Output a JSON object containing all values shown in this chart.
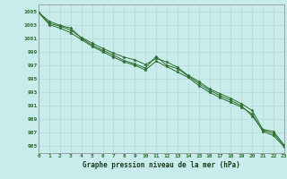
{
  "title": "Graphe pression niveau de la mer (hPa)",
  "background_color": "#c8ecec",
  "grid_color": "#b8d8d8",
  "line_color": "#2d6e2d",
  "marker_color": "#2d6e2d",
  "xlim": [
    0,
    23
  ],
  "ylim": [
    984,
    1006
  ],
  "yticks": [
    985,
    987,
    989,
    991,
    993,
    995,
    997,
    999,
    1001,
    1003,
    1005
  ],
  "xticks": [
    0,
    1,
    2,
    3,
    4,
    5,
    6,
    7,
    8,
    9,
    10,
    11,
    12,
    13,
    14,
    15,
    16,
    17,
    18,
    19,
    20,
    21,
    22,
    23
  ],
  "series": [
    [
      1004.8,
      1003.2,
      1002.8,
      1002.2,
      1001.1,
      1000.3,
      999.5,
      998.8,
      998.2,
      997.8,
      997.1,
      998.0,
      997.5,
      996.7,
      995.5,
      994.6,
      993.5,
      992.8,
      992.1,
      991.3,
      990.3,
      987.5,
      987.2,
      985.2
    ],
    [
      1004.8,
      1003.5,
      1002.9,
      1002.5,
      1001.0,
      1000.0,
      999.2,
      998.5,
      997.7,
      997.2,
      996.6,
      998.3,
      997.0,
      996.5,
      995.4,
      994.3,
      993.3,
      992.5,
      991.8,
      991.0,
      989.5,
      987.4,
      986.9,
      985.1
    ],
    [
      1004.8,
      1003.0,
      1002.5,
      1001.8,
      1000.8,
      999.8,
      999.0,
      998.2,
      997.5,
      997.0,
      996.3,
      997.6,
      996.8,
      996.0,
      995.2,
      994.0,
      993.0,
      992.2,
      991.5,
      990.8,
      989.8,
      987.2,
      986.6,
      984.9
    ]
  ]
}
